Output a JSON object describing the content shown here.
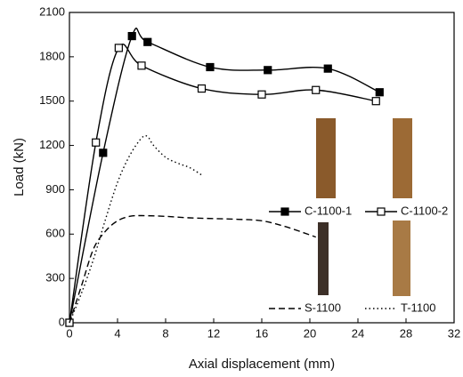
{
  "chart_data": {
    "type": "line",
    "x_label": "Axial displacement (mm)",
    "y_label": "Load (kN)",
    "xlim": [
      0,
      32
    ],
    "xticks": [
      0,
      4,
      8,
      12,
      16,
      20,
      24,
      28,
      32
    ],
    "ylim": [
      0,
      2100
    ],
    "yticks": [
      0,
      300,
      600,
      900,
      1200,
      1500,
      1800,
      2100
    ],
    "series": [
      {
        "name": "C-1100-1",
        "color": "#000000",
        "style": "solid",
        "marker": "filled-square",
        "x": [
          0,
          2.8,
          5.2,
          6.5,
          11.7,
          16.5,
          21.5,
          25.8
        ],
        "values": [
          0,
          1150,
          1940,
          1900,
          1730,
          1710,
          1720,
          1560
        ]
      },
      {
        "name": "C-1100-2",
        "color": "#000000",
        "style": "solid",
        "marker": "open-square",
        "x": [
          0,
          2.2,
          4.1,
          6,
          11,
          16,
          20.5,
          25.5
        ],
        "values": [
          0,
          1220,
          1860,
          1740,
          1585,
          1545,
          1575,
          1500
        ]
      },
      {
        "name": "S-1100",
        "color": "#000000",
        "style": "dashed",
        "marker": "none",
        "x": [
          0,
          1,
          2,
          3,
          4,
          5,
          6,
          8,
          10,
          12,
          14,
          16,
          18,
          20.5
        ],
        "values": [
          0,
          250,
          500,
          620,
          690,
          720,
          725,
          720,
          710,
          705,
          700,
          690,
          650,
          580
        ]
      },
      {
        "name": "T-1100",
        "color": "#000000",
        "style": "dotted",
        "marker": "none",
        "x": [
          0,
          1,
          2,
          3,
          4,
          5,
          6,
          6.5,
          7,
          8,
          9,
          10,
          11
        ],
        "values": [
          0,
          200,
          430,
          700,
          950,
          1130,
          1250,
          1260,
          1200,
          1120,
          1080,
          1050,
          1000
        ]
      }
    ]
  }
}
